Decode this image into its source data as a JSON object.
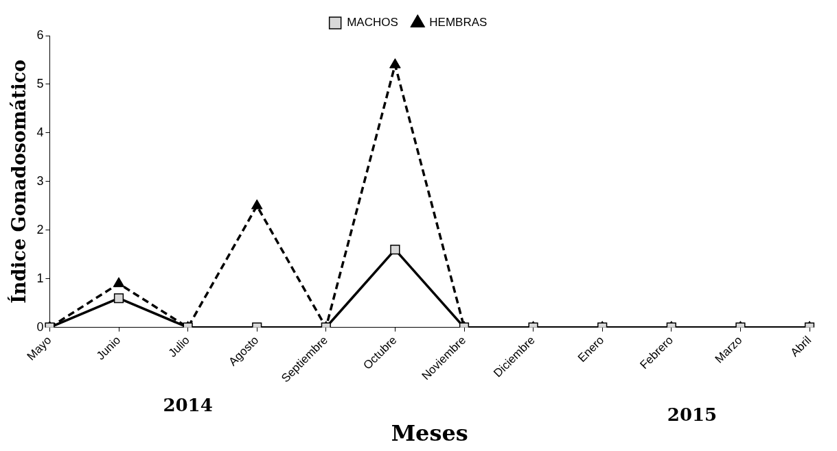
{
  "chart_data": {
    "type": "line",
    "xlabel": "Meses",
    "ylabel": "Índice Gonadosomático",
    "categories": [
      "Mayo",
      "Junio",
      "Julio",
      "Agosto",
      "Septiembre",
      "Octubre",
      "Noviembre",
      "Diciembre",
      "Enero",
      "Febrero",
      "Marzo",
      "Abril"
    ],
    "series": [
      {
        "name": "HEMBRAS",
        "color": "#000000",
        "marker": "triangle",
        "line_style": "dashed",
        "values": [
          0,
          0.9,
          0,
          2.5,
          0,
          5.4,
          0,
          0,
          0,
          0,
          0,
          0
        ]
      },
      {
        "name": "MACHOS",
        "color": "#000000",
        "marker": "square",
        "line_style": "solid",
        "values": [
          0,
          0.6,
          0,
          0,
          0,
          1.6,
          0,
          0,
          0,
          0,
          0,
          0
        ]
      }
    ],
    "ylim": [
      0,
      6
    ],
    "yticks": [
      0,
      1,
      2,
      3,
      4,
      5,
      6
    ],
    "grid": false,
    "legend": "top",
    "annotations": [
      "2014",
      "2015"
    ]
  }
}
